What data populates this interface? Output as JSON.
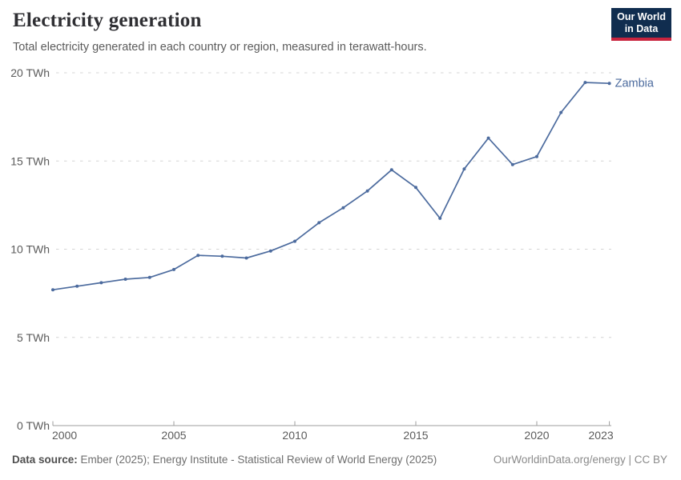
{
  "header": {
    "title": "Electricity generation",
    "subtitle": "Total electricity generated in each country or region, measured in terawatt-hours."
  },
  "logo": {
    "line1": "Our World",
    "line2": "in Data",
    "bg_color": "#102D4F",
    "accent_color": "#C9243E"
  },
  "chart_data": {
    "type": "line",
    "title": "Electricity generation",
    "unit": "TWh",
    "xlim": [
      2000,
      2023
    ],
    "ylim": [
      0,
      20
    ],
    "grid": "horizontal-dashed",
    "entity_label_position": "end-of-line",
    "x_ticks": [
      {
        "value": 2000,
        "label": "2000"
      },
      {
        "value": 2005,
        "label": "2005"
      },
      {
        "value": 2010,
        "label": "2010"
      },
      {
        "value": 2015,
        "label": "2015"
      },
      {
        "value": 2020,
        "label": "2020"
      },
      {
        "value": 2023,
        "label": "2023"
      }
    ],
    "y_ticks": [
      {
        "value": 0,
        "label": "0 TWh"
      },
      {
        "value": 5,
        "label": "5 TWh"
      },
      {
        "value": 10,
        "label": "10 TWh"
      },
      {
        "value": 15,
        "label": "15 TWh"
      },
      {
        "value": 20,
        "label": "20 TWh"
      }
    ],
    "series": [
      {
        "name": "Zambia",
        "color": "#4C6B9E",
        "x": [
          2000,
          2001,
          2002,
          2003,
          2004,
          2005,
          2006,
          2007,
          2008,
          2009,
          2010,
          2011,
          2012,
          2013,
          2014,
          2015,
          2016,
          2017,
          2018,
          2019,
          2020,
          2021,
          2022,
          2023
        ],
        "values": [
          7.7,
          7.9,
          8.1,
          8.3,
          8.4,
          8.85,
          9.65,
          9.6,
          9.5,
          9.9,
          10.45,
          11.5,
          12.35,
          13.3,
          14.5,
          13.5,
          11.75,
          14.55,
          16.3,
          14.8,
          15.25,
          17.75,
          19.45,
          19.4
        ]
      }
    ],
    "colors": {
      "gridline": "#d4d4d4",
      "axis": "#9e9e9e",
      "tick_label": "#5b5b5b"
    }
  },
  "footer": {
    "datasource_label": "Data source:",
    "datasource_value": " Ember (2025); Energy Institute - Statistical Review of World Energy (2025)",
    "rights": "OurWorldinData.org/energy | CC BY"
  }
}
